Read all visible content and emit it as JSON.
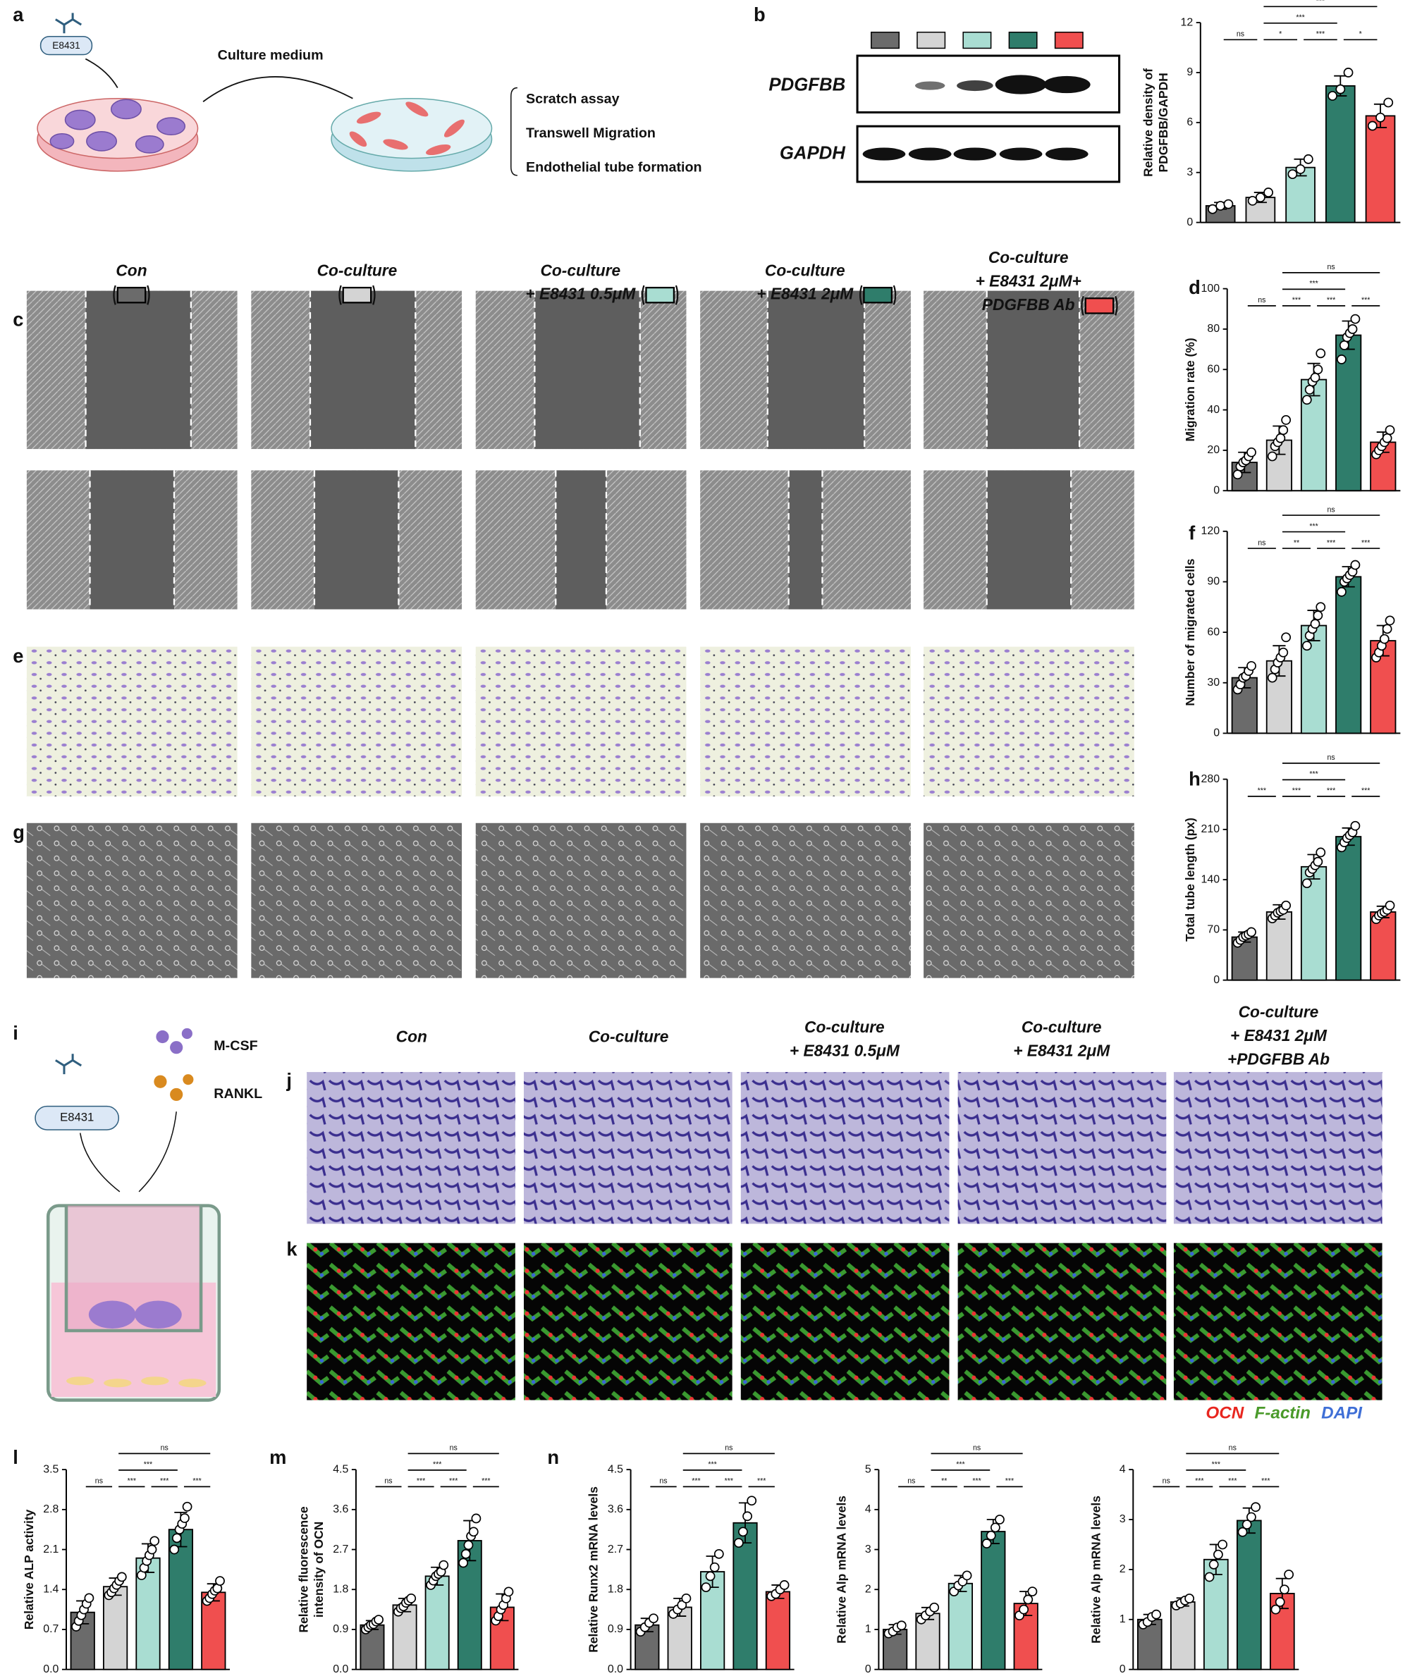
{
  "panel_labels": [
    "a",
    "b",
    "c",
    "d",
    "e",
    "f",
    "g",
    "h",
    "i",
    "j",
    "k",
    "l",
    "m",
    "n"
  ],
  "panel_a": {
    "drug": "E8431",
    "arrow_label": "Culture medium",
    "assays": [
      "Scratch assay",
      "Transwell Migration",
      "Endothelial tube formation"
    ]
  },
  "panel_b": {
    "rows": [
      "PDGFBB",
      "GAPDH"
    ]
  },
  "conditions_top": [
    [
      "Con"
    ],
    [
      "Co-culture"
    ],
    [
      "Co-culture",
      "+ E8431 0.5μM"
    ],
    [
      "Co-culture",
      "+ E8431 2μM"
    ],
    [
      "Co-culture",
      "+ E8431 2μM+",
      "PDGFBB Ab"
    ]
  ],
  "panel_i": {
    "drug": "E8431",
    "factors": [
      "M-CSF",
      "RANKL"
    ]
  },
  "conditions_bottom": [
    [
      "Con"
    ],
    [
      "Co-culture"
    ],
    [
      "Co-culture",
      "+ E8431 0.5μM"
    ],
    [
      "Co-culture",
      "+ E8431 2μM"
    ],
    [
      "Co-culture",
      "+ E8431 2μM",
      "+PDGFBB Ab"
    ]
  ],
  "stain_legend": [
    {
      "label": "OCN",
      "color": "#e8261f"
    },
    {
      "label": "F-actin",
      "color": "#4a9a2a"
    },
    {
      "label": "DAPI",
      "color": "#3f6fd6"
    }
  ],
  "chart_data": [
    {
      "type": "bar",
      "ylabel": [
        "Relative density of",
        "PDGFBB/GAPDH"
      ],
      "colors": [
        "#6b6b6b",
        "#d4d4d4",
        "#a9ddd2",
        "#2f7d6b",
        "#f04f4f"
      ],
      "ylim": [
        0,
        12
      ],
      "yticks": [
        0,
        3,
        6,
        9,
        12
      ],
      "values": [
        1.0,
        1.5,
        3.3,
        8.2,
        6.4
      ],
      "errors": [
        0.2,
        0.3,
        0.5,
        0.6,
        0.7
      ],
      "points": [
        [
          0.8,
          1.0,
          1.1
        ],
        [
          1.3,
          1.5,
          1.8
        ],
        [
          2.9,
          3.2,
          3.8
        ],
        [
          7.6,
          8.0,
          9.0
        ],
        [
          5.8,
          6.3,
          7.2
        ]
      ],
      "comparisons": [
        {
          "from": 0,
          "to": 1,
          "label": "ns"
        },
        {
          "from": 1,
          "to": 2,
          "label": "*"
        },
        {
          "from": 2,
          "to": 3,
          "label": "***"
        },
        {
          "from": 3,
          "to": 4,
          "label": "*"
        },
        {
          "from": 1,
          "to": 3,
          "label": "***"
        },
        {
          "from": 1,
          "to": 4,
          "label": "***"
        }
      ]
    },
    {
      "type": "bar",
      "ylabel": [
        "Migration rate (%)"
      ],
      "colors": [
        "#6b6b6b",
        "#d4d4d4",
        "#a9ddd2",
        "#2f7d6b",
        "#f04f4f"
      ],
      "ylim": [
        0,
        100
      ],
      "yticks": [
        0,
        20,
        40,
        60,
        80,
        100
      ],
      "values": [
        14,
        25,
        55,
        77,
        24
      ],
      "errors": [
        5,
        7,
        8,
        7,
        5
      ],
      "points": [
        [
          8,
          12,
          14,
          15,
          17,
          19
        ],
        [
          17,
          22,
          24,
          26,
          30,
          35
        ],
        [
          45,
          50,
          54,
          56,
          60,
          68
        ],
        [
          65,
          72,
          76,
          78,
          80,
          85
        ],
        [
          18,
          20,
          22,
          24,
          26,
          30
        ]
      ],
      "comparisons": [
        {
          "from": 0,
          "to": 1,
          "label": "ns"
        },
        {
          "from": 1,
          "to": 2,
          "label": "***"
        },
        {
          "from": 2,
          "to": 3,
          "label": "***"
        },
        {
          "from": 3,
          "to": 4,
          "label": "***"
        },
        {
          "from": 1,
          "to": 3,
          "label": "***"
        },
        {
          "from": 1,
          "to": 4,
          "label": "ns"
        }
      ]
    },
    {
      "type": "bar",
      "ylabel": [
        "Number of migrated cells"
      ],
      "colors": [
        "#6b6b6b",
        "#d4d4d4",
        "#a9ddd2",
        "#2f7d6b",
        "#f04f4f"
      ],
      "ylim": [
        0,
        120
      ],
      "yticks": [
        0,
        30,
        60,
        90,
        120
      ],
      "values": [
        33,
        43,
        64,
        93,
        55
      ],
      "errors": [
        6,
        9,
        9,
        6,
        9
      ],
      "points": [
        [
          26,
          29,
          33,
          34,
          37,
          40
        ],
        [
          33,
          38,
          42,
          45,
          48,
          57
        ],
        [
          52,
          58,
          62,
          65,
          70,
          75
        ],
        [
          84,
          90,
          92,
          94,
          96,
          100
        ],
        [
          45,
          48,
          52,
          56,
          62,
          67
        ]
      ],
      "comparisons": [
        {
          "from": 0,
          "to": 1,
          "label": "ns"
        },
        {
          "from": 1,
          "to": 2,
          "label": "**"
        },
        {
          "from": 2,
          "to": 3,
          "label": "***"
        },
        {
          "from": 3,
          "to": 4,
          "label": "***"
        },
        {
          "from": 1,
          "to": 3,
          "label": "***"
        },
        {
          "from": 1,
          "to": 4,
          "label": "ns"
        }
      ]
    },
    {
      "type": "bar",
      "ylabel": [
        "Total tube length (px)"
      ],
      "colors": [
        "#6b6b6b",
        "#d4d4d4",
        "#a9ddd2",
        "#2f7d6b",
        "#f04f4f"
      ],
      "ylim": [
        0,
        280
      ],
      "yticks": [
        0,
        70,
        140,
        210,
        280
      ],
      "values": [
        60,
        95,
        158,
        200,
        95
      ],
      "errors": [
        7,
        10,
        17,
        12,
        8
      ],
      "points": [
        [
          52,
          56,
          60,
          62,
          64,
          67
        ],
        [
          86,
          90,
          94,
          96,
          98,
          104
        ],
        [
          135,
          150,
          155,
          160,
          165,
          178
        ],
        [
          185,
          192,
          198,
          202,
          206,
          215
        ],
        [
          85,
          90,
          93,
          95,
          98,
          104
        ]
      ],
      "comparisons": [
        {
          "from": 0,
          "to": 1,
          "label": "***"
        },
        {
          "from": 1,
          "to": 2,
          "label": "***"
        },
        {
          "from": 2,
          "to": 3,
          "label": "***"
        },
        {
          "from": 3,
          "to": 4,
          "label": "***"
        },
        {
          "from": 1,
          "to": 3,
          "label": "***"
        },
        {
          "from": 1,
          "to": 4,
          "label": "ns"
        }
      ]
    },
    {
      "type": "bar",
      "ylabel": [
        "Relative ALP activity"
      ],
      "colors": [
        "#6b6b6b",
        "#d4d4d4",
        "#a9ddd2",
        "#2f7d6b",
        "#f04f4f"
      ],
      "ylim": [
        0,
        3.5
      ],
      "yticks": [
        {
          "value": 0,
          "label": "0.0"
        },
        0.7,
        1.4,
        2.1,
        2.8,
        3.5
      ],
      "values": [
        1.0,
        1.45,
        1.95,
        2.45,
        1.35
      ],
      "errors": [
        0.2,
        0.15,
        0.25,
        0.3,
        0.15
      ],
      "points": [
        [
          0.75,
          0.85,
          0.95,
          1.05,
          1.15,
          1.25
        ],
        [
          1.3,
          1.35,
          1.42,
          1.48,
          1.55,
          1.62
        ],
        [
          1.65,
          1.78,
          1.9,
          2.0,
          2.1,
          2.25
        ],
        [
          2.1,
          2.3,
          2.45,
          2.55,
          2.65,
          2.85
        ],
        [
          1.2,
          1.25,
          1.32,
          1.38,
          1.42,
          1.55
        ]
      ],
      "comparisons": [
        {
          "from": 0,
          "to": 1,
          "label": "ns"
        },
        {
          "from": 1,
          "to": 2,
          "label": "***"
        },
        {
          "from": 2,
          "to": 3,
          "label": "***"
        },
        {
          "from": 3,
          "to": 4,
          "label": "***"
        },
        {
          "from": 1,
          "to": 3,
          "label": "***"
        },
        {
          "from": 1,
          "to": 4,
          "label": "ns"
        }
      ]
    },
    {
      "type": "bar",
      "ylabel": [
        "Relative fluorescence",
        "intensity of OCN"
      ],
      "colors": [
        "#6b6b6b",
        "#d4d4d4",
        "#a9ddd2",
        "#2f7d6b",
        "#f04f4f"
      ],
      "ylim": [
        0,
        4.5
      ],
      "yticks": [
        {
          "value": 0,
          "label": "0.0"
        },
        0.9,
        1.8,
        2.7,
        3.6,
        4.5
      ],
      "values": [
        1.0,
        1.45,
        2.1,
        2.9,
        1.4
      ],
      "errors": [
        0.1,
        0.15,
        0.2,
        0.45,
        0.3
      ],
      "points": [
        [
          0.9,
          0.95,
          1.0,
          1.02,
          1.08,
          1.12
        ],
        [
          1.3,
          1.38,
          1.42,
          1.5,
          1.55,
          1.6
        ],
        [
          1.9,
          2.0,
          2.1,
          2.15,
          2.2,
          2.35
        ],
        [
          2.4,
          2.6,
          2.8,
          3.0,
          3.1,
          3.4
        ],
        [
          1.1,
          1.2,
          1.35,
          1.45,
          1.6,
          1.75
        ]
      ],
      "comparisons": [
        {
          "from": 0,
          "to": 1,
          "label": "ns"
        },
        {
          "from": 1,
          "to": 2,
          "label": "***"
        },
        {
          "from": 2,
          "to": 3,
          "label": "***"
        },
        {
          "from": 3,
          "to": 4,
          "label": "***"
        },
        {
          "from": 1,
          "to": 3,
          "label": "***"
        },
        {
          "from": 1,
          "to": 4,
          "label": "ns"
        }
      ]
    },
    {
      "type": "bar",
      "ylabel": [
        "Relative Runx2 mRNA levels"
      ],
      "colors": [
        "#6b6b6b",
        "#d4d4d4",
        "#a9ddd2",
        "#2f7d6b",
        "#f04f4f"
      ],
      "ylim": [
        0,
        4.5
      ],
      "yticks": [
        {
          "value": 0,
          "label": "0.0"
        },
        0.9,
        1.8,
        2.7,
        3.6,
        4.5
      ],
      "values": [
        1.0,
        1.4,
        2.2,
        3.3,
        1.75
      ],
      "errors": [
        0.15,
        0.2,
        0.35,
        0.45,
        0.15
      ],
      "points": [
        [
          0.85,
          0.95,
          1.05,
          1.15
        ],
        [
          1.25,
          1.35,
          1.45,
          1.6
        ],
        [
          1.85,
          2.1,
          2.3,
          2.6
        ],
        [
          2.85,
          3.1,
          3.45,
          3.8
        ],
        [
          1.65,
          1.7,
          1.8,
          1.9
        ]
      ],
      "comparisons": [
        {
          "from": 0,
          "to": 1,
          "label": "ns"
        },
        {
          "from": 1,
          "to": 2,
          "label": "***"
        },
        {
          "from": 2,
          "to": 3,
          "label": "***"
        },
        {
          "from": 3,
          "to": 4,
          "label": "***"
        },
        {
          "from": 1,
          "to": 3,
          "label": "***"
        },
        {
          "from": 1,
          "to": 4,
          "label": "ns"
        }
      ]
    },
    {
      "type": "bar",
      "ylabel": [
        "Relative Alp mRNA levels"
      ],
      "colors": [
        "#6b6b6b",
        "#d4d4d4",
        "#a9ddd2",
        "#2f7d6b",
        "#f04f4f"
      ],
      "ylim": [
        0,
        5
      ],
      "yticks": [
        0,
        1,
        2,
        3,
        4,
        5
      ],
      "values": [
        1.0,
        1.4,
        2.15,
        3.45,
        1.65
      ],
      "errors": [
        0.12,
        0.15,
        0.2,
        0.3,
        0.3
      ],
      "points": [
        [
          0.9,
          0.95,
          1.05,
          1.1
        ],
        [
          1.25,
          1.35,
          1.45,
          1.55
        ],
        [
          1.95,
          2.1,
          2.2,
          2.35
        ],
        [
          3.15,
          3.35,
          3.55,
          3.75
        ],
        [
          1.35,
          1.5,
          1.75,
          1.95
        ]
      ],
      "comparisons": [
        {
          "from": 0,
          "to": 1,
          "label": "ns"
        },
        {
          "from": 1,
          "to": 2,
          "label": "**"
        },
        {
          "from": 2,
          "to": 3,
          "label": "***"
        },
        {
          "from": 3,
          "to": 4,
          "label": "***"
        },
        {
          "from": 1,
          "to": 3,
          "label": "***"
        },
        {
          "from": 1,
          "to": 4,
          "label": "ns"
        }
      ]
    },
    {
      "type": "bar",
      "ylabel": [
        "Relative Alp mRNA levels"
      ],
      "colors": [
        "#6b6b6b",
        "#d4d4d4",
        "#a9ddd2",
        "#2f7d6b",
        "#f04f4f"
      ],
      "ylim": [
        0,
        4
      ],
      "yticks": [
        0,
        1,
        2,
        3,
        4
      ],
      "values": [
        1.0,
        1.35,
        2.2,
        2.98,
        1.52
      ],
      "errors": [
        0.1,
        0.08,
        0.3,
        0.25,
        0.3
      ],
      "points": [
        [
          0.9,
          0.95,
          1.05,
          1.1
        ],
        [
          1.28,
          1.32,
          1.38,
          1.42
        ],
        [
          1.85,
          2.1,
          2.3,
          2.5
        ],
        [
          2.75,
          2.9,
          3.05,
          3.25
        ],
        [
          1.2,
          1.35,
          1.6,
          1.9
        ]
      ],
      "comparisons": [
        {
          "from": 0,
          "to": 1,
          "label": "ns"
        },
        {
          "from": 1,
          "to": 2,
          "label": "***"
        },
        {
          "from": 2,
          "to": 3,
          "label": "***"
        },
        {
          "from": 3,
          "to": 4,
          "label": "***"
        },
        {
          "from": 1,
          "to": 3,
          "label": "***"
        },
        {
          "from": 1,
          "to": 4,
          "label": "ns"
        }
      ]
    }
  ]
}
